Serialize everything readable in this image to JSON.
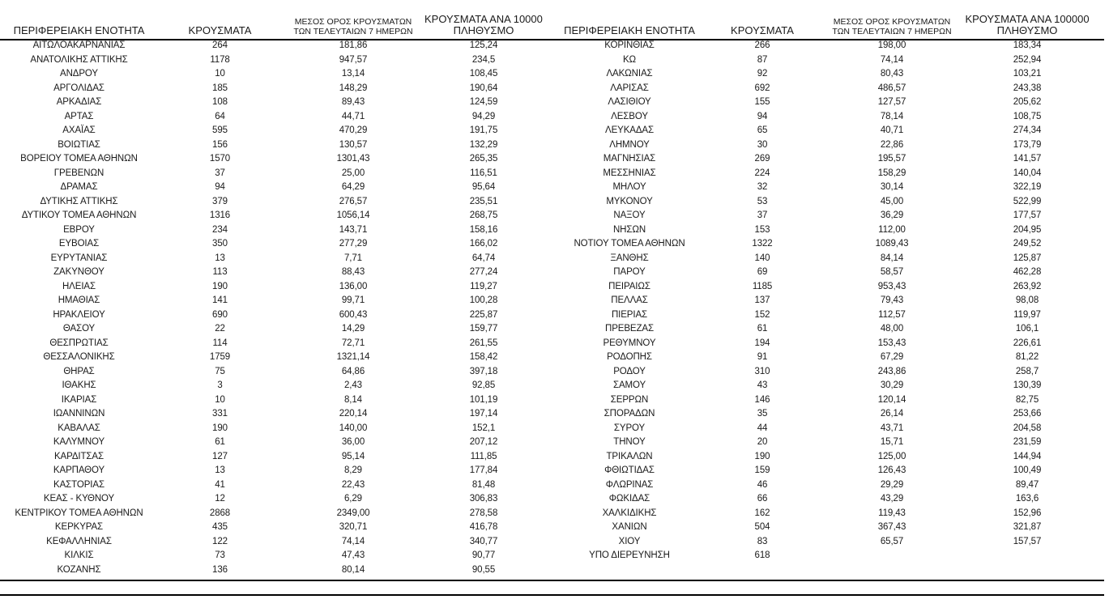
{
  "page": {
    "background_color": "#ffffff",
    "text_color": "#1a1a1a",
    "rule_color": "#000000"
  },
  "columns": {
    "region": "ΠΕΡΙΦΕΡΕΙΑΚΗ ΕΝΟΤΗΤΑ",
    "cases": "ΚΡΟΥΣΜΑΤΑ",
    "avg7_line1": "ΜΕΣΟΣ ΟΡΟΣ ΚΡΟΥΣΜΑΤΩΝ",
    "avg7_line2": "ΤΩΝ ΤΕΛΕΥΤΑΙΩΝ 7 ΗΜΕΡΩΝ",
    "per100k_line1": "ΚΡΟΥΣΜΑΤΑ ΑΝΑ 100000",
    "per100k_line2": "ΠΛΗΘΥΣΜΟ"
  },
  "tables": [
    {
      "id": "left",
      "rows": [
        [
          "ΑΙΤΩΛΟΑΚΑΡΝΑΝΙΑΣ",
          "264",
          "181,86",
          "125,24"
        ],
        [
          "ΑΝΑΤΟΛΙΚΗΣ ΑΤΤΙΚΗΣ",
          "1178",
          "947,57",
          "234,5"
        ],
        [
          "ΑΝΔΡΟΥ",
          "10",
          "13,14",
          "108,45"
        ],
        [
          "ΑΡΓΟΛΙΔΑΣ",
          "185",
          "148,29",
          "190,64"
        ],
        [
          "ΑΡΚΑΔΙΑΣ",
          "108",
          "89,43",
          "124,59"
        ],
        [
          "ΑΡΤΑΣ",
          "64",
          "44,71",
          "94,29"
        ],
        [
          "ΑΧΑΪΑΣ",
          "595",
          "470,29",
          "191,75"
        ],
        [
          "ΒΟΙΩΤΙΑΣ",
          "156",
          "130,57",
          "132,29"
        ],
        [
          "ΒΟΡΕΙΟΥ ΤΟΜΕΑ ΑΘΗΝΩΝ",
          "1570",
          "1301,43",
          "265,35"
        ],
        [
          "ΓΡΕΒΕΝΩΝ",
          "37",
          "25,00",
          "116,51"
        ],
        [
          "ΔΡΑΜΑΣ",
          "94",
          "64,29",
          "95,64"
        ],
        [
          "ΔΥΤΙΚΗΣ ΑΤΤΙΚΗΣ",
          "379",
          "276,57",
          "235,51"
        ],
        [
          "ΔΥΤΙΚΟΥ ΤΟΜΕΑ ΑΘΗΝΩΝ",
          "1316",
          "1056,14",
          "268,75"
        ],
        [
          "ΕΒΡΟΥ",
          "234",
          "143,71",
          "158,16"
        ],
        [
          "ΕΥΒΟΙΑΣ",
          "350",
          "277,29",
          "166,02"
        ],
        [
          "ΕΥΡΥΤΑΝΙΑΣ",
          "13",
          "7,71",
          "64,74"
        ],
        [
          "ΖΑΚΥΝΘΟΥ",
          "113",
          "88,43",
          "277,24"
        ],
        [
          "ΗΛΕΙΑΣ",
          "190",
          "136,00",
          "119,27"
        ],
        [
          "ΗΜΑΘΙΑΣ",
          "141",
          "99,71",
          "100,28"
        ],
        [
          "ΗΡΑΚΛΕΙΟΥ",
          "690",
          "600,43",
          "225,87"
        ],
        [
          "ΘΑΣΟΥ",
          "22",
          "14,29",
          "159,77"
        ],
        [
          "ΘΕΣΠΡΩΤΙΑΣ",
          "114",
          "72,71",
          "261,55"
        ],
        [
          "ΘΕΣΣΑΛΟΝΙΚΗΣ",
          "1759",
          "1321,14",
          "158,42"
        ],
        [
          "ΘΗΡΑΣ",
          "75",
          "64,86",
          "397,18"
        ],
        [
          "ΙΘΑΚΗΣ",
          "3",
          "2,43",
          "92,85"
        ],
        [
          "ΙΚΑΡΙΑΣ",
          "10",
          "8,14",
          "101,19"
        ],
        [
          "ΙΩΑΝΝΙΝΩΝ",
          "331",
          "220,14",
          "197,14"
        ],
        [
          "ΚΑΒΑΛΑΣ",
          "190",
          "140,00",
          "152,1"
        ],
        [
          "ΚΑΛΥΜΝΟΥ",
          "61",
          "36,00",
          "207,12"
        ],
        [
          "ΚΑΡΔΙΤΣΑΣ",
          "127",
          "95,14",
          "111,85"
        ],
        [
          "ΚΑΡΠΑΘΟΥ",
          "13",
          "8,29",
          "177,84"
        ],
        [
          "ΚΑΣΤΟΡΙΑΣ",
          "41",
          "22,43",
          "81,48"
        ],
        [
          "ΚΕΑΣ - ΚΥΘΝΟΥ",
          "12",
          "6,29",
          "306,83"
        ],
        [
          "ΚΕΝΤΡΙΚΟΥ ΤΟΜΕΑ ΑΘΗΝΩΝ",
          "2868",
          "2349,00",
          "278,58"
        ],
        [
          "ΚΕΡΚΥΡΑΣ",
          "435",
          "320,71",
          "416,78"
        ],
        [
          "ΚΕΦΑΛΛΗΝΙΑΣ",
          "122",
          "74,14",
          "340,77"
        ],
        [
          "ΚΙΛΚΙΣ",
          "73",
          "47,43",
          "90,77"
        ],
        [
          "ΚΟΖΑΝΗΣ",
          "136",
          "80,14",
          "90,55"
        ]
      ]
    },
    {
      "id": "right",
      "rows": [
        [
          "ΚΟΡΙΝΘΙΑΣ",
          "266",
          "198,00",
          "183,34"
        ],
        [
          "ΚΩ",
          "87",
          "74,14",
          "252,94"
        ],
        [
          "ΛΑΚΩΝΙΑΣ",
          "92",
          "80,43",
          "103,21"
        ],
        [
          "ΛΑΡΙΣΑΣ",
          "692",
          "486,57",
          "243,38"
        ],
        [
          "ΛΑΣΙΘΙΟΥ",
          "155",
          "127,57",
          "205,62"
        ],
        [
          "ΛΕΣΒΟΥ",
          "94",
          "78,14",
          "108,75"
        ],
        [
          "ΛΕΥΚΑΔΑΣ",
          "65",
          "40,71",
          "274,34"
        ],
        [
          "ΛΗΜΝΟΥ",
          "30",
          "22,86",
          "173,79"
        ],
        [
          "ΜΑΓΝΗΣΙΑΣ",
          "269",
          "195,57",
          "141,57"
        ],
        [
          "ΜΕΣΣΗΝΙΑΣ",
          "224",
          "158,29",
          "140,04"
        ],
        [
          "ΜΗΛΟΥ",
          "32",
          "30,14",
          "322,19"
        ],
        [
          "ΜΥΚΟΝΟΥ",
          "53",
          "45,00",
          "522,99"
        ],
        [
          "ΝΑΞΟΥ",
          "37",
          "36,29",
          "177,57"
        ],
        [
          "ΝΗΣΩΝ",
          "153",
          "112,00",
          "204,95"
        ],
        [
          "ΝΟΤΙΟΥ ΤΟΜΕΑ ΑΘΗΝΩΝ",
          "1322",
          "1089,43",
          "249,52"
        ],
        [
          "ΞΑΝΘΗΣ",
          "140",
          "84,14",
          "125,87"
        ],
        [
          "ΠΑΡΟΥ",
          "69",
          "58,57",
          "462,28"
        ],
        [
          "ΠΕΙΡΑΙΩΣ",
          "1185",
          "953,43",
          "263,92"
        ],
        [
          "ΠΕΛΛΑΣ",
          "137",
          "79,43",
          "98,08"
        ],
        [
          "ΠΙΕΡΙΑΣ",
          "152",
          "112,57",
          "119,97"
        ],
        [
          "ΠΡΕΒΕΖΑΣ",
          "61",
          "48,00",
          "106,1"
        ],
        [
          "ΡΕΘΥΜΝΟΥ",
          "194",
          "153,43",
          "226,61"
        ],
        [
          "ΡΟΔΟΠΗΣ",
          "91",
          "67,29",
          "81,22"
        ],
        [
          "ΡΟΔΟΥ",
          "310",
          "243,86",
          "258,7"
        ],
        [
          "ΣΑΜΟΥ",
          "43",
          "30,29",
          "130,39"
        ],
        [
          "ΣΕΡΡΩΝ",
          "146",
          "120,14",
          "82,75"
        ],
        [
          "ΣΠΟΡΑΔΩΝ",
          "35",
          "26,14",
          "253,66"
        ],
        [
          "ΣΥΡΟΥ",
          "44",
          "43,71",
          "204,58"
        ],
        [
          "ΤΗΝΟΥ",
          "20",
          "15,71",
          "231,59"
        ],
        [
          "ΤΡΙΚΑΛΩΝ",
          "190",
          "125,00",
          "144,94"
        ],
        [
          "ΦΘΙΩΤΙΔΑΣ",
          "159",
          "126,43",
          "100,49"
        ],
        [
          "ΦΛΩΡΙΝΑΣ",
          "46",
          "29,29",
          "89,47"
        ],
        [
          "ΦΩΚΙΔΑΣ",
          "66",
          "43,29",
          "163,6"
        ],
        [
          "ΧΑΛΚΙΔΙΚΗΣ",
          "162",
          "119,43",
          "152,96"
        ],
        [
          "ΧΑΝΙΩΝ",
          "504",
          "367,43",
          "321,87"
        ],
        [
          "ΧΙΟΥ",
          "83",
          "65,57",
          "157,57"
        ],
        [
          "ΥΠΟ ΔΙΕΡΕΥΝΗΣΗ",
          "618",
          "",
          ""
        ]
      ]
    }
  ]
}
